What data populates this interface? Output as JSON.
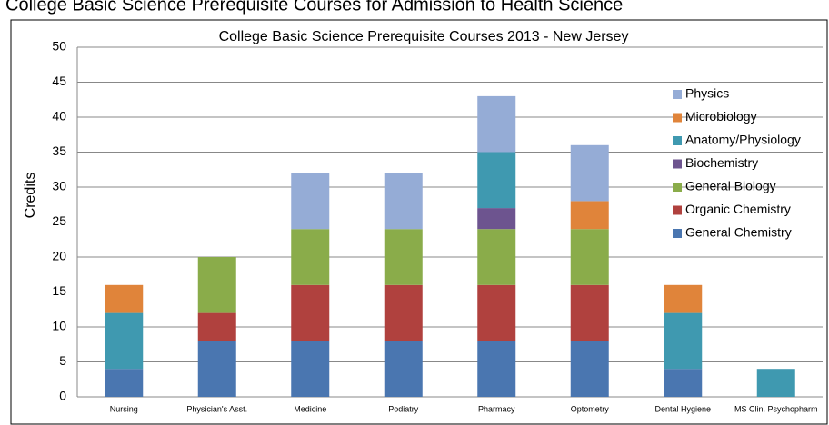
{
  "page_title": "College Basic Science Prerequisite Courses for Admission to Health Science",
  "chart_data": {
    "type": "stacked_bar",
    "title": "College Basic Science Prerequisite Courses 2013 - New Jersey",
    "y_label": "Credits",
    "categories": [
      "Nursing",
      "Physician's Asst.",
      "Medicine",
      "Podiatry",
      "Pharmacy",
      "Optometry",
      "Dental Hygiene",
      "MS Clin. Psychopharm"
    ],
    "series": [
      {
        "name": "General Chemistry",
        "color": "#4a76b0",
        "values": [
          4,
          8,
          8,
          8,
          8,
          8,
          4,
          0
        ]
      },
      {
        "name": "Organic Chemistry",
        "color": "#b0413e",
        "values": [
          0,
          4,
          8,
          8,
          8,
          8,
          0,
          0
        ]
      },
      {
        "name": "General  Biology",
        "color": "#8aac4a",
        "values": [
          0,
          8,
          8,
          8,
          8,
          8,
          0,
          0
        ]
      },
      {
        "name": "Biochemistry",
        "color": "#6d548f",
        "values": [
          0,
          0,
          0,
          0,
          3,
          0,
          0,
          0
        ]
      },
      {
        "name": "Anatomy/Physiology",
        "color": "#3f99b0",
        "values": [
          8,
          0,
          0,
          0,
          8,
          0,
          8,
          4
        ]
      },
      {
        "name": "Microbiology",
        "color": "#e0843a",
        "values": [
          4,
          0,
          0,
          0,
          0,
          4,
          4,
          0
        ]
      },
      {
        "name": "Physics",
        "color": "#95acd6",
        "values": [
          0,
          0,
          8,
          8,
          8,
          8,
          0,
          0
        ]
      }
    ],
    "ylim": [
      0,
      50
    ],
    "yticks": [
      0,
      5,
      10,
      15,
      20,
      25,
      30,
      35,
      40,
      45,
      50
    ],
    "grid": true,
    "legend": "right"
  }
}
